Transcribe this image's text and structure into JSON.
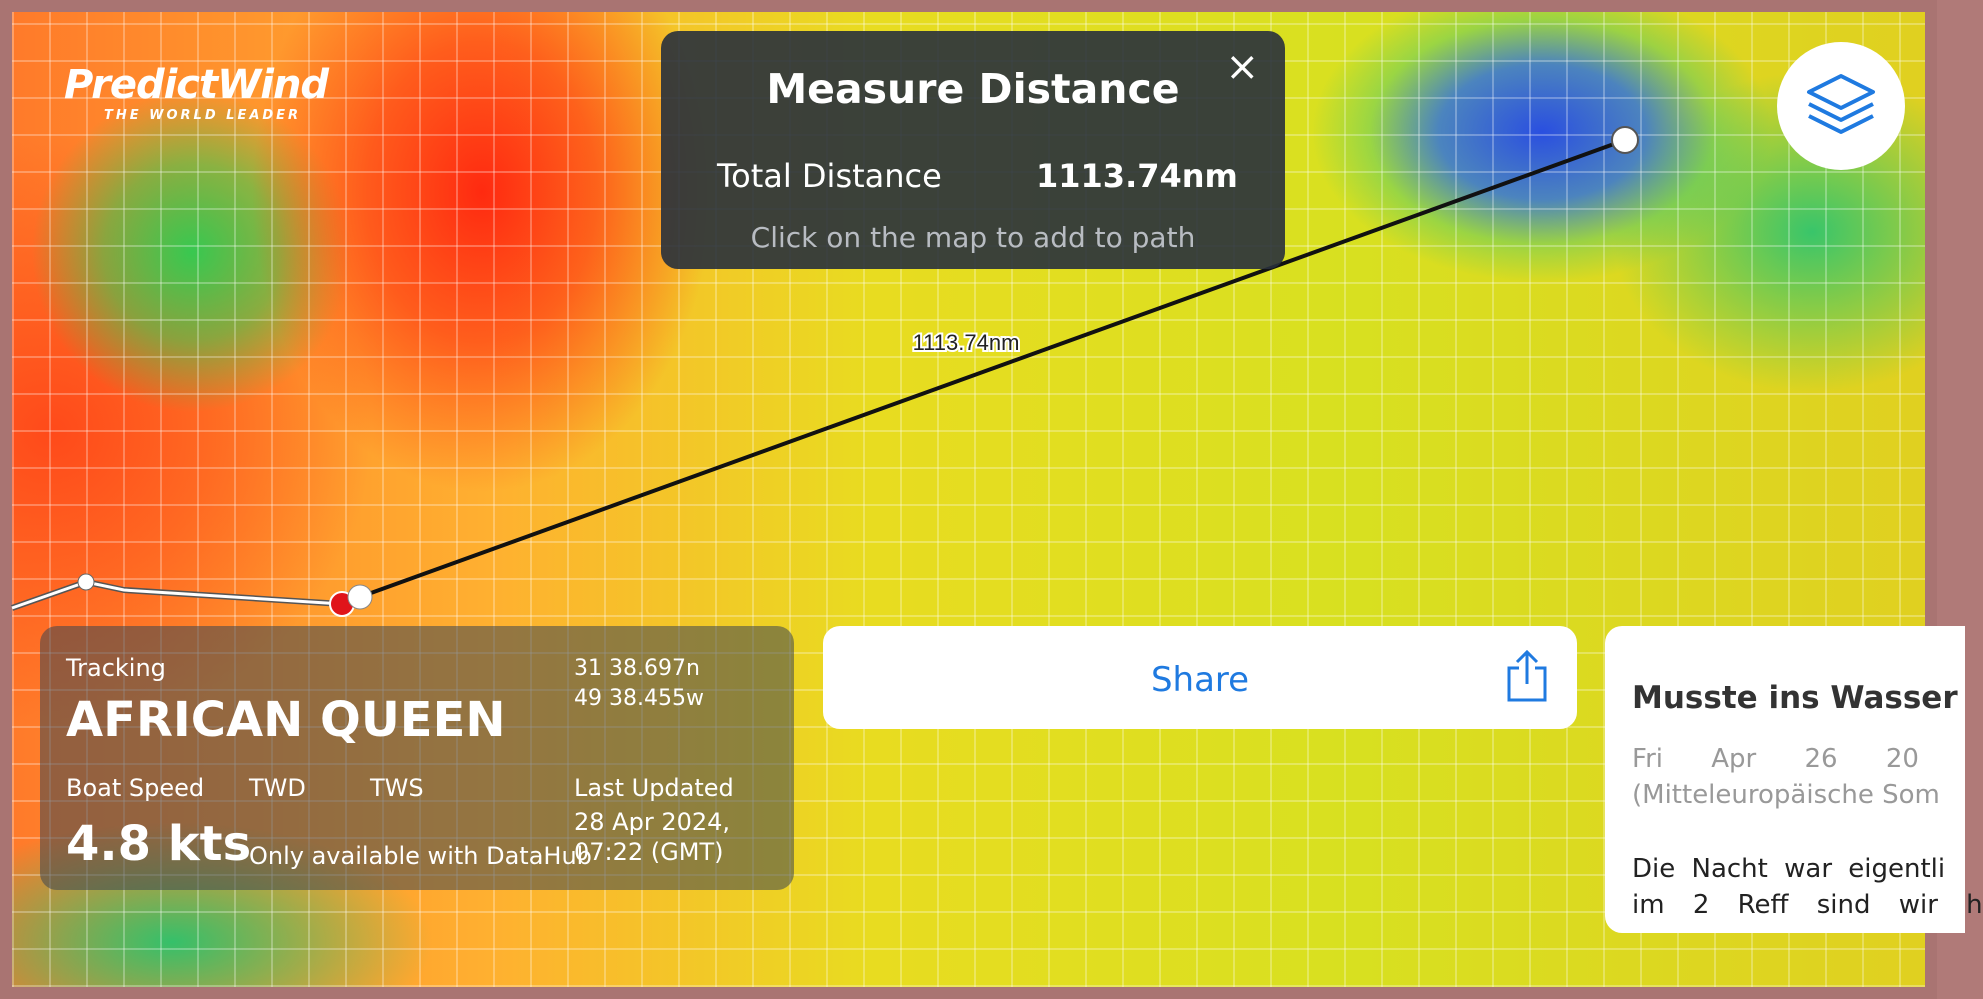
{
  "logo": {
    "name": "PredictWind",
    "tagline": "THE WORLD LEADER"
  },
  "measure": {
    "title": "Measure Distance",
    "total_label": "Total Distance",
    "total_value": "1113.74nm",
    "hint": "Click on the map to add to path",
    "line_label": "1113.74nm"
  },
  "tracking": {
    "heading": "Tracking",
    "boat": "AFRICAN QUEEN",
    "lat": "31 38.697n",
    "lon": "49 38.455w",
    "speed_label": "Boat Speed",
    "twd_label": "TWD",
    "tws_label": "TWS",
    "updated_label": "Last Updated",
    "speed_value": "4.8 kts",
    "wind_note": "Only available with DataHub",
    "updated_date": "28 Apr 2024,",
    "updated_time": "07:22 (GMT)"
  },
  "share": {
    "label": "Share"
  },
  "post": {
    "title": "Musste ins Wasser",
    "date_line1": "Fri Apr 26 20",
    "date_line2": "(Mitteleuropäische Som",
    "body_line1": "Die Nacht war eigentli",
    "body_line2": "im 2 Reff sind wir h"
  }
}
